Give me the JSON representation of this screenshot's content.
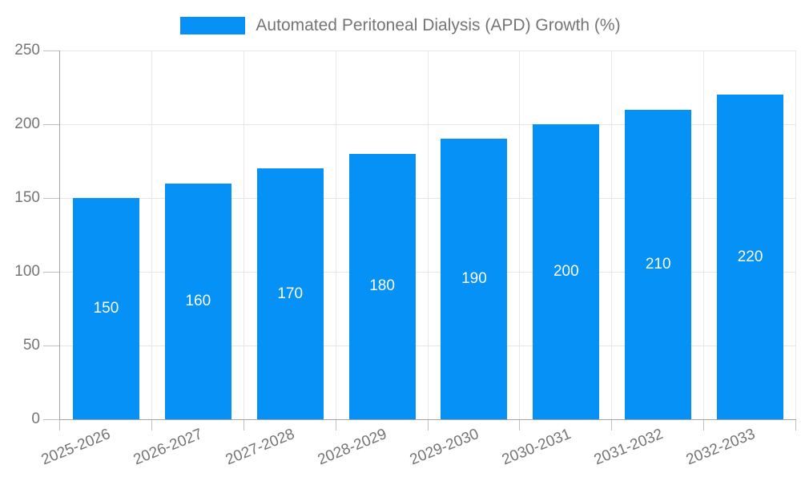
{
  "legend": {
    "label": "Automated Peritoneal Dialysis (APD) Growth (%)"
  },
  "colors": {
    "bar": "#0591f5",
    "grid": "#e6e6e6",
    "axis": "#a3a3a3",
    "tick": "#c2c2c2",
    "text": "#757575",
    "bar_label": "#ffffff",
    "background": "#ffffff"
  },
  "chart_data": {
    "type": "bar",
    "title": "Automated Peritoneal Dialysis (APD) Growth (%)",
    "categories": [
      "2025-2026",
      "2026-2027",
      "2027-2028",
      "2028-2029",
      "2029-2030",
      "2030-2031",
      "2031-2032",
      "2032-2033"
    ],
    "values": [
      150,
      160,
      170,
      180,
      190,
      200,
      210,
      220
    ],
    "bar_value_labels": [
      "150",
      "160",
      "170",
      "180",
      "190",
      "200",
      "210",
      "220"
    ],
    "xlabel": "",
    "ylabel": "",
    "ylim": [
      0,
      250
    ],
    "y_ticks": [
      0,
      50,
      100,
      150,
      200,
      250
    ],
    "grid": true,
    "legend_position": "top",
    "value_label_position": "inside-center",
    "x_label_rotation_deg": -22
  }
}
